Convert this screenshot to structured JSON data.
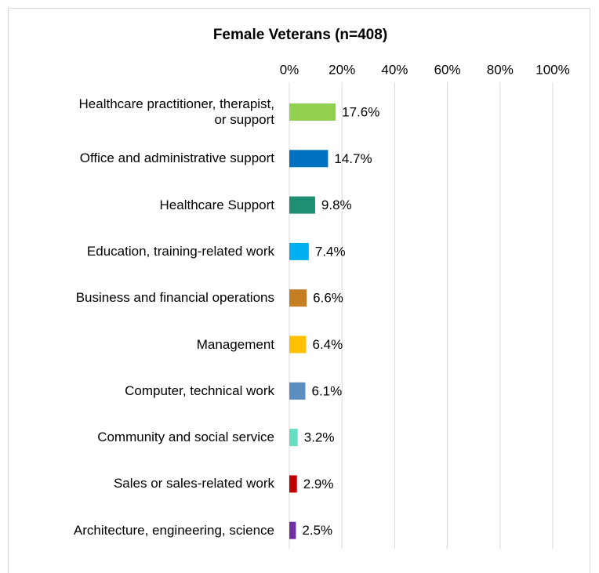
{
  "chart_data": {
    "type": "bar",
    "orientation": "horizontal",
    "title": "Female Veterans (n=408)",
    "categories": [
      "Healthcare practitioner, therapist,\nor support",
      "Office and administrative support",
      "Healthcare Support",
      "Education, training-related work",
      "Business and financial operations",
      "Management",
      "Computer, technical work",
      "Community and social service",
      "Sales or sales-related work",
      "Architecture, engineering, science"
    ],
    "values": [
      17.6,
      14.7,
      9.8,
      7.4,
      6.6,
      6.4,
      6.1,
      3.2,
      2.9,
      2.5
    ],
    "value_labels": [
      "17.6%",
      "14.7%",
      "9.8%",
      "7.4%",
      "6.6%",
      "6.4%",
      "6.1%",
      "3.2%",
      "2.9%",
      "2.5%"
    ],
    "colors": [
      "#92d050",
      "#0070c0",
      "#1f8f74",
      "#00b0f0",
      "#c47f22",
      "#ffc000",
      "#5b8fbf",
      "#66e0c4",
      "#c00000",
      "#7030a0"
    ],
    "xlim": [
      0,
      100
    ],
    "xticks": [
      {
        "value": 0,
        "label": "0%"
      },
      {
        "value": 20,
        "label": "20%"
      },
      {
        "value": 40,
        "label": "40%"
      },
      {
        "value": 60,
        "label": "60%"
      },
      {
        "value": 80,
        "label": "80%"
      },
      {
        "value": 100,
        "label": "100%"
      }
    ],
    "grid": true
  }
}
